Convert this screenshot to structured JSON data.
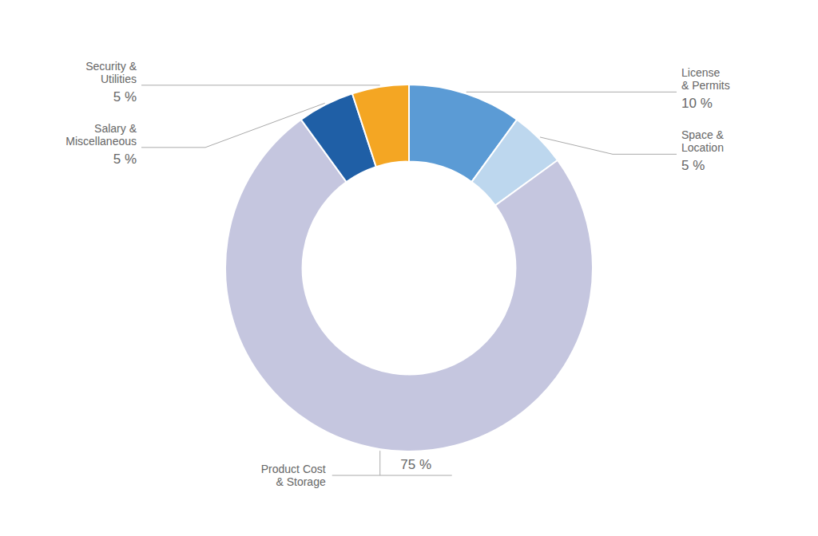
{
  "chart_data": {
    "type": "donut",
    "categories": [
      "License\n& Permits",
      "Space &\nLocation",
      "Product Cost\n& Storage",
      "Salary &\nMiscellaneous",
      "Security &\nUtilities"
    ],
    "values": [
      10,
      5,
      75,
      5,
      5
    ],
    "value_labels": [
      "10  %",
      "5  %",
      "75  %",
      "5  %",
      "5  %"
    ],
    "colors": [
      "#5b9bd5",
      "#bdd7ee",
      "#c5c6df",
      "#1f5fa6",
      "#f4a623"
    ],
    "data_labels": true
  }
}
